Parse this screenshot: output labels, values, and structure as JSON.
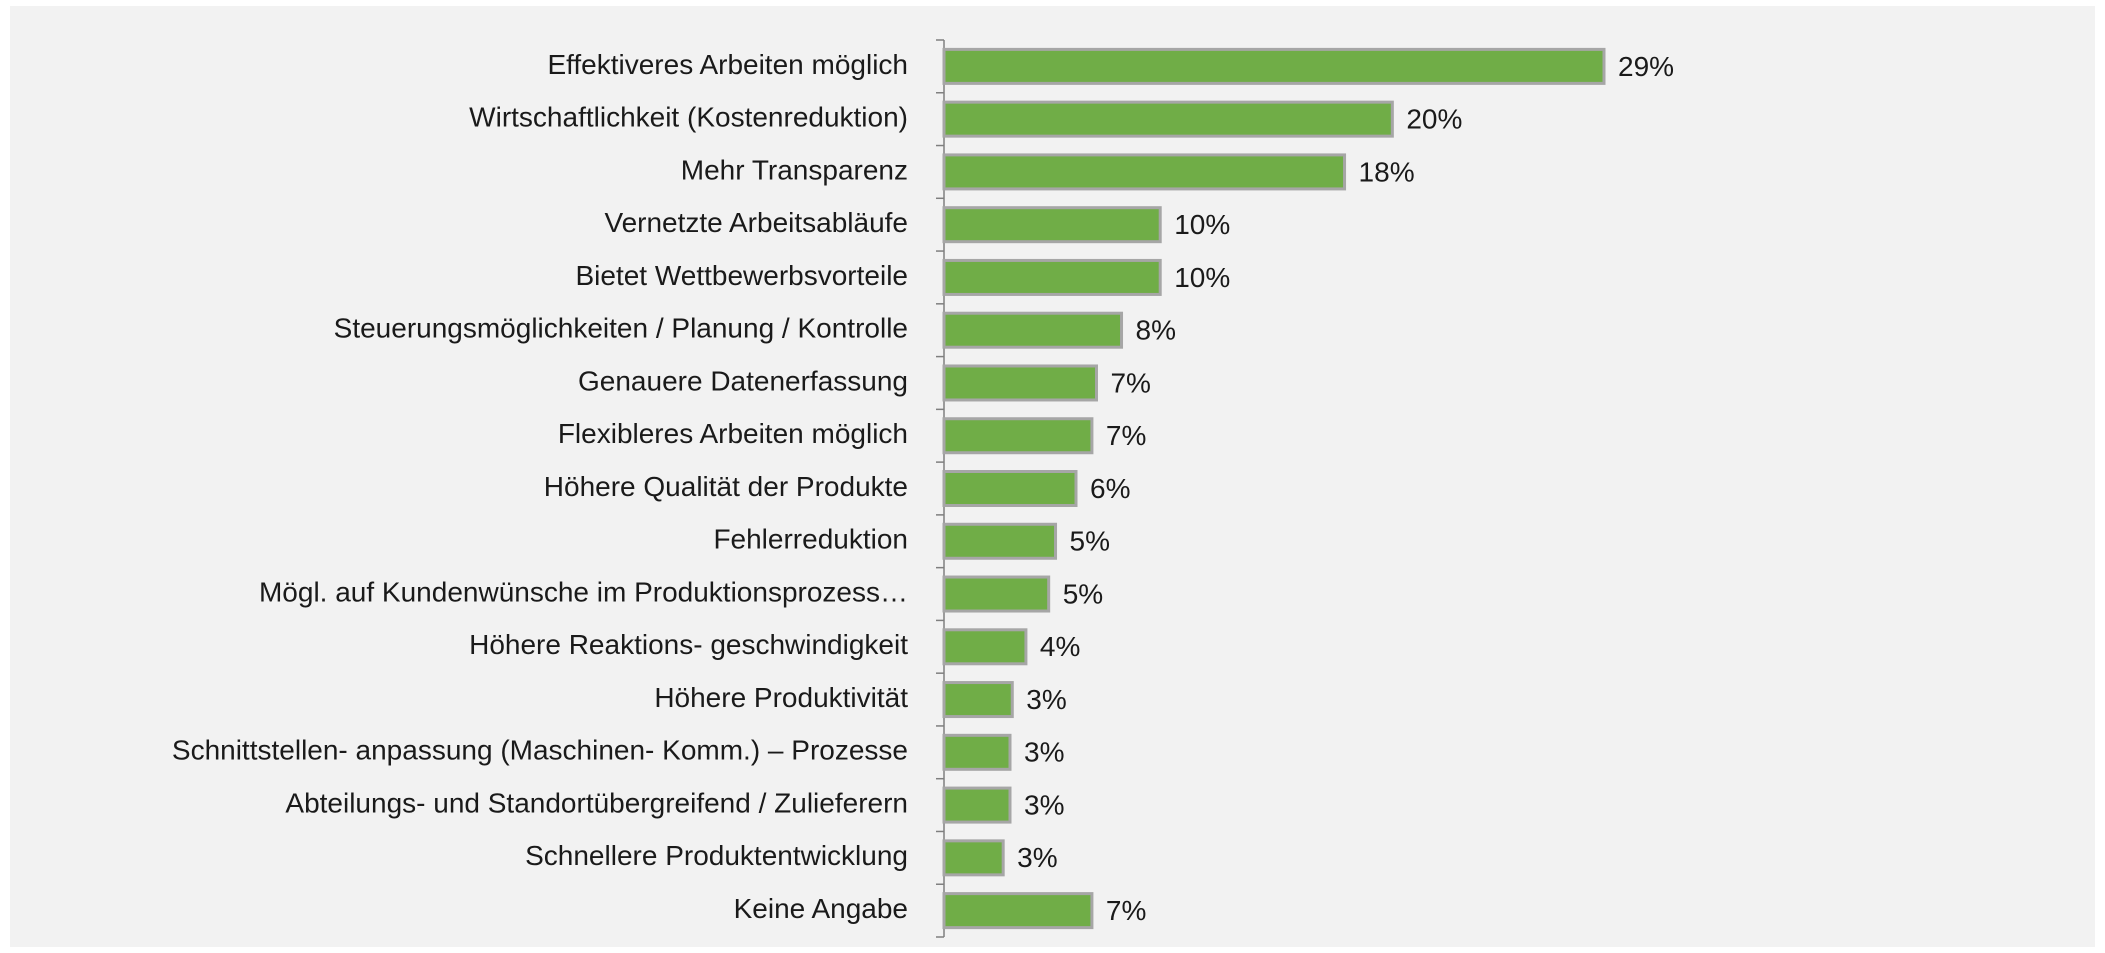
{
  "chart_data": {
    "type": "bar",
    "orientation": "horizontal",
    "color": "#70ad47",
    "categories": [
      "Effektiveres Arbeiten möglich",
      "Wirtschaftlichkeit (Kostenreduktion)",
      "Mehr Transparenz",
      "Vernetzte Arbeitsabläufe",
      "Bietet Wettbewerbsvorteile",
      "Steuerungsmöglichkeiten / Planung / Kontrolle",
      "Genauere Datenerfassung",
      "Flexibleres Arbeiten möglich",
      "Höhere Qualität der Produkte",
      "Fehlerreduktion",
      "Mögl. auf Kundenwünsche im Produktionsprozess…",
      "Höhere Reaktions- geschwindigkeit",
      "Höhere Produktivität",
      "Schnittstellen- anpassung (Maschinen- Komm.) – Prozesse",
      "Abteilungs- und Standortübergreifend / Zulieferern",
      "Schnellere Produktentwicklung",
      "Keine Angabe"
    ],
    "values": [
      29,
      19.7,
      17.6,
      9.5,
      9.5,
      7.8,
      6.7,
      6.5,
      5.8,
      4.9,
      4.6,
      3.6,
      3.0,
      2.9,
      2.9,
      2.6,
      6.5
    ],
    "value_labels": [
      "29%",
      "20%",
      "18%",
      "10%",
      "10%",
      "8%",
      "7%",
      "7%",
      "6%",
      "5%",
      "5%",
      "4%",
      "3%",
      "3%",
      "3%",
      "3%",
      "7%"
    ]
  }
}
